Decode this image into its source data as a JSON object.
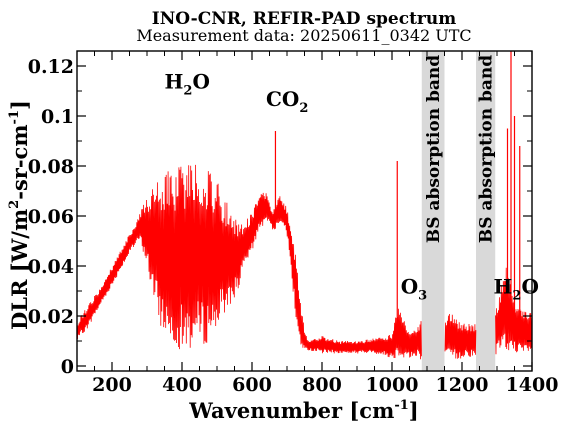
{
  "chart_data": {
    "type": "line",
    "title": "INO-CNR, REFIR-PAD spectrum",
    "subtitle": "Measurement data: 20250611_0342 UTC",
    "xlabel": "Wavenumber [cm",
    "xlabel_sup": "-1",
    "xlabel_end": "]",
    "ylabel": "DLR [W/m",
    "ylabel_sup1": "2",
    "ylabel_mid": "-sr-cm",
    "ylabel_sup2": "-1",
    "ylabel_end": "]",
    "xlim": [
      100,
      1400
    ],
    "ylim": [
      -0.002,
      0.126
    ],
    "xticks": [
      200,
      400,
      600,
      800,
      1000,
      1200,
      1400
    ],
    "yticks": [
      0,
      0.02,
      0.04,
      0.06,
      0.08,
      0.1,
      0.12
    ],
    "ytick_labels": [
      "0",
      "0.02",
      "0.04",
      "0.06",
      "0.08",
      "0.1",
      "0.12"
    ],
    "grid": false,
    "series": [
      {
        "color": "#ff0000",
        "envelope": {
          "x": [
            100,
            110,
            130,
            150,
            170,
            200,
            230,
            260,
            280,
            300,
            320,
            340,
            360,
            380,
            400,
            420,
            440,
            460,
            480,
            500,
            520,
            540,
            560,
            580,
            600,
            610,
            620,
            640,
            650,
            660,
            670,
            680,
            690,
            700,
            710,
            720,
            730,
            740,
            750,
            760,
            780,
            800,
            850,
            900,
            950,
            980,
            1000,
            1010,
            1020,
            1030,
            1040,
            1050,
            1060,
            1070,
            1080,
            1090,
            1150,
            1170,
            1190,
            1210,
            1240,
            1290,
            1300,
            1310,
            1320,
            1330,
            1340,
            1350,
            1360,
            1370,
            1380,
            1390,
            1400
          ],
          "upper": [
            0.016,
            0.02,
            0.024,
            0.028,
            0.032,
            0.04,
            0.048,
            0.055,
            0.062,
            0.068,
            0.073,
            0.076,
            0.078,
            0.08,
            0.081,
            0.082,
            0.083,
            0.081,
            0.078,
            0.074,
            0.068,
            0.062,
            0.058,
            0.058,
            0.062,
            0.065,
            0.069,
            0.07,
            0.065,
            0.062,
            0.066,
            0.068,
            0.066,
            0.063,
            0.058,
            0.05,
            0.04,
            0.025,
            0.015,
            0.01,
            0.011,
            0.012,
            0.01,
            0.01,
            0.011,
            0.012,
            0.013,
            0.02,
            0.025,
            0.02,
            0.016,
            0.014,
            0.015,
            0.016,
            0.018,
            0.019,
            0.02,
            0.022,
            0.018,
            0.017,
            0.017,
            0.02,
            0.025,
            0.03,
            0.04,
            0.04,
            0.032,
            0.025,
            0.023,
            0.024,
            0.022,
            0.022,
            0.022
          ],
          "lower": [
            0.01,
            0.012,
            0.015,
            0.02,
            0.025,
            0.032,
            0.04,
            0.047,
            0.05,
            0.04,
            0.025,
            0.015,
            0.01,
            0.008,
            0.006,
            0.006,
            0.007,
            0.008,
            0.01,
            0.015,
            0.02,
            0.025,
            0.03,
            0.04,
            0.045,
            0.05,
            0.055,
            0.056,
            0.058,
            0.054,
            0.055,
            0.058,
            0.057,
            0.052,
            0.04,
            0.025,
            0.012,
            0.008,
            0.006,
            0.006,
            0.006,
            0.005,
            0.005,
            0.005,
            0.005,
            0.004,
            0.003,
            0.003,
            0.004,
            0.003,
            0.004,
            0.003,
            0.003,
            0.004,
            0.003,
            0.001,
            0.002,
            0.003,
            0.002,
            0.004,
            0.003,
            0.003,
            0.004,
            0.006,
            0.006,
            0.005,
            0.006,
            0.006,
            0.005,
            0.005,
            0.004,
            0.004,
            0.004
          ]
        },
        "spikes": [
          [
            667,
            0.094
          ],
          [
            1015,
            0.082
          ],
          [
            1330,
            0.095
          ],
          [
            1340,
            0.126
          ],
          [
            1350,
            0.1
          ],
          [
            1365,
            0.088
          ]
        ]
      }
    ],
    "bands": [
      {
        "x0": 1085,
        "x1": 1150,
        "color": "#d9d9d9",
        "label": "BS absorption band"
      },
      {
        "x0": 1240,
        "x1": 1295,
        "color": "#d9d9d9",
        "label": "BS absorption band"
      }
    ],
    "annotations": [
      {
        "text": "H",
        "sub": "2",
        "tail": "O",
        "x": 350,
        "y": 0.111
      },
      {
        "text": "CO",
        "sub": "2",
        "tail": "",
        "x": 640,
        "y": 0.104
      },
      {
        "text": "O",
        "sub": "3",
        "tail": "",
        "x": 1025,
        "y": 0.029
      },
      {
        "text": "H",
        "sub": "2",
        "tail": "O",
        "x": 1290,
        "y": 0.029
      }
    ]
  }
}
